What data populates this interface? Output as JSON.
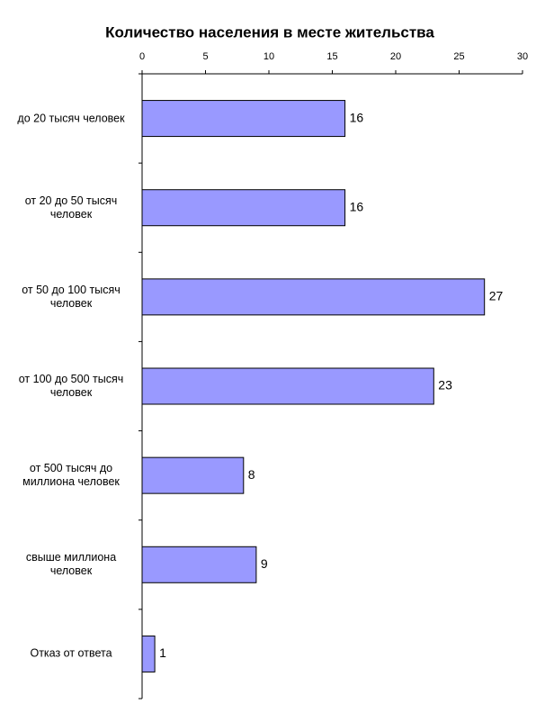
{
  "chart_data": {
    "type": "barh",
    "title": "Количество населения в месте жительства",
    "categories": [
      "до 20 тысяч человек",
      "от 20 до 50 тысяч человек",
      "от 50 до 100 тысяч человек",
      "от 100 до 500 тысяч человек",
      "от 500 тысяч до миллиона человек",
      "свыше миллиона человек",
      "Отказ от ответа"
    ],
    "values": [
      16,
      16,
      27,
      23,
      8,
      9,
      1
    ],
    "color": "#9999ff",
    "xlim": [
      0,
      30
    ],
    "xticks": [
      0,
      5,
      10,
      15,
      20,
      25,
      30
    ],
    "grid": false
  }
}
